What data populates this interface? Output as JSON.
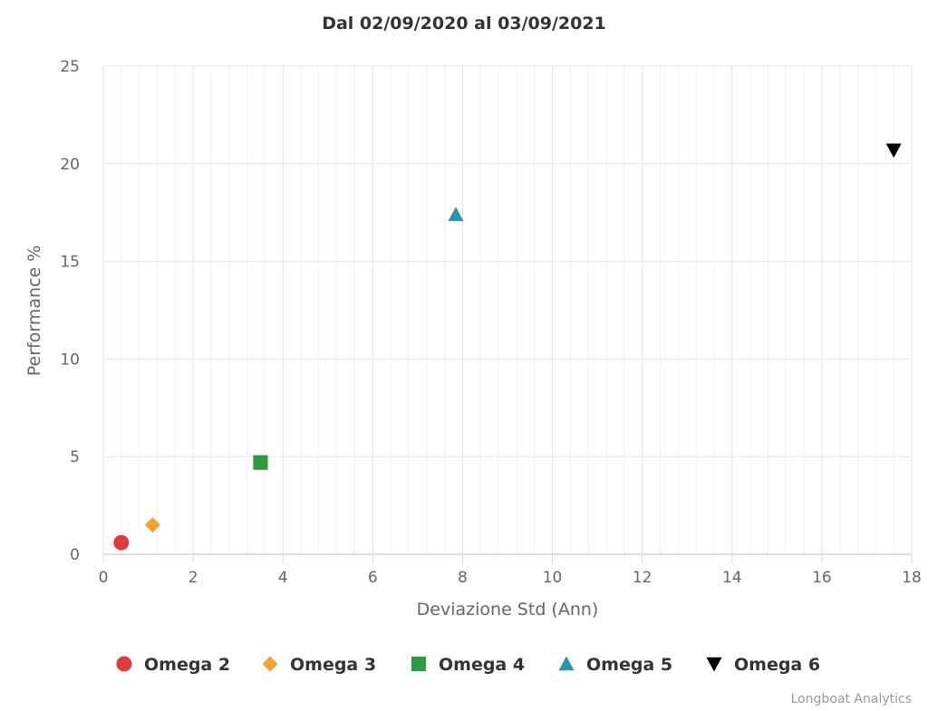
{
  "chart_data": {
    "type": "scatter",
    "title": "Dal 02/09/2020 al 03/09/2021",
    "xlabel": "Deviazione Std (Ann)",
    "ylabel": "Performance %",
    "xlim": [
      0,
      18
    ],
    "ylim": [
      0,
      25
    ],
    "xticks": [
      0,
      2,
      4,
      6,
      8,
      10,
      12,
      14,
      16,
      18
    ],
    "yticks": [
      0,
      5,
      10,
      15,
      20,
      25
    ],
    "grid": true,
    "legend_position": "bottom",
    "series": [
      {
        "name": "Omega 2",
        "symbol": "circle",
        "color": "#e03c3c",
        "points": [
          {
            "x": 0.4,
            "y": 0.6
          }
        ]
      },
      {
        "name": "Omega 3",
        "symbol": "diamond",
        "color": "#f7a035",
        "points": [
          {
            "x": 1.1,
            "y": 1.5
          }
        ]
      },
      {
        "name": "Omega 4",
        "symbol": "square",
        "color": "#2e9b43",
        "points": [
          {
            "x": 3.5,
            "y": 4.7
          }
        ]
      },
      {
        "name": "Omega 5",
        "symbol": "triangle-up",
        "color": "#2a93ad",
        "points": [
          {
            "x": 7.85,
            "y": 17.4
          }
        ]
      },
      {
        "name": "Omega 6",
        "symbol": "triangle-down",
        "color": "#000000",
        "points": [
          {
            "x": 17.6,
            "y": 20.7
          }
        ]
      }
    ]
  },
  "credits": "Longboat Analytics"
}
